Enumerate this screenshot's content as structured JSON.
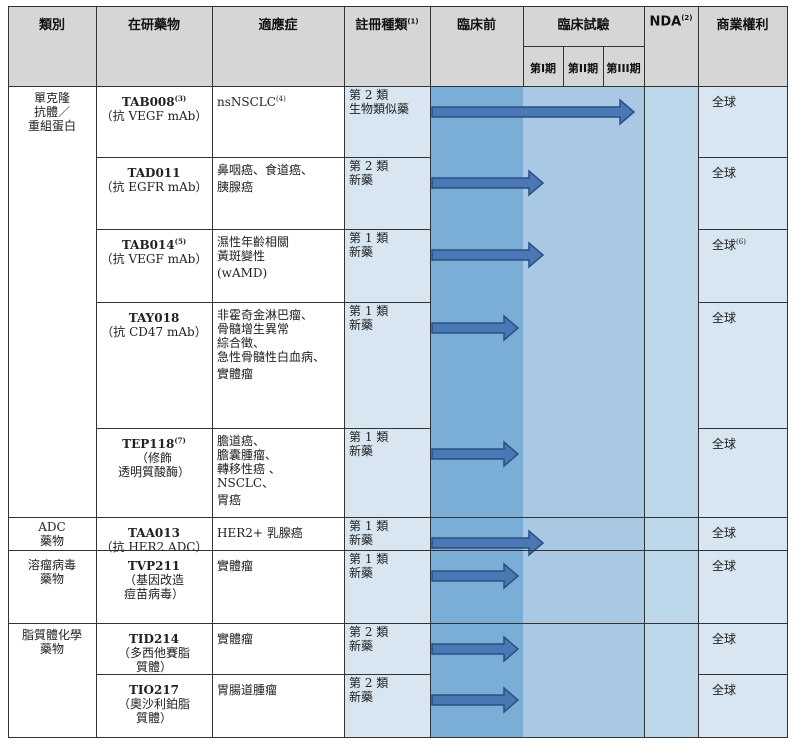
{
  "headers": {
    "category": "類別",
    "drug": "在研藥物",
    "indication": "適應症",
    "registration": "註冊種類",
    "registration_sup": "(1)",
    "preclinical": "臨床前",
    "clinical": "臨床試驗",
    "phase1": "第I期",
    "phase2": "第II期",
    "phase3": "第III期",
    "nda": "NDA",
    "nda_sup": "(2)",
    "rights": "商業權利"
  },
  "categories": [
    {
      "label": "單克隆\n抗體／\n重組蛋白"
    },
    {
      "label": "ADC\n藥物"
    },
    {
      "label": "溶瘤病毒\n藥物"
    },
    {
      "label": "脂質體化學\n藥物"
    }
  ],
  "rows": [
    {
      "drug": "TAB008",
      "drug_sup": "(3)",
      "sub": "（抗 VEGF mAb）",
      "indication": "nsNSCLC",
      "indication_sup": "(4)",
      "registration": "第 2 類\n生物類似藥",
      "rights": "全球",
      "rights_sup": "",
      "progress_stage": "Phase III"
    },
    {
      "drug": "TAD011",
      "drug_sup": "",
      "sub": "（抗 EGFR mAb）",
      "indication": "鼻咽癌、食道癌、\n胰腺癌",
      "indication_sup": "",
      "registration": "第 2 類\n新藥",
      "rights": "全球",
      "rights_sup": "",
      "progress_stage": "Phase I"
    },
    {
      "drug": "TAB014",
      "drug_sup": "(5)",
      "sub": "（抗 VEGF mAb）",
      "indication": "濕性年齡相關\n黃斑變性\n(wAMD)",
      "indication_sup": "",
      "registration": "第 1 類\n新藥",
      "rights": "全球",
      "rights_sup": "(6)",
      "progress_stage": "Phase I"
    },
    {
      "drug": "TAY018",
      "drug_sup": "",
      "sub": "（抗 CD47 mAb）",
      "indication": "非霍奇金淋巴瘤、\n骨髓增生異常\n綜合徵、\n急性骨髓性白血病、\n實體瘤",
      "indication_sup": "",
      "registration": "第 1 類\n新藥",
      "rights": "全球",
      "rights_sup": "",
      "progress_stage": "Preclinical"
    },
    {
      "drug": "TEP118",
      "drug_sup": "(7)",
      "sub": "（修飾\n透明質酸酶）",
      "indication": "膽道癌、\n膽囊腫瘤、\n轉移性癌 、\nNSCLC、\n胃癌",
      "indication_sup": "",
      "registration": "第 1 類\n新藥",
      "rights": "全球",
      "rights_sup": "",
      "progress_stage": "Preclinical"
    },
    {
      "drug": "TAA013",
      "drug_sup": "",
      "sub": "（抗 HER2 ADC）",
      "indication": "HER2+ 乳腺癌",
      "indication_sup": "",
      "registration": "第 1 類\n新藥",
      "rights": "全球",
      "rights_sup": "",
      "progress_stage": "Phase I"
    },
    {
      "drug": "TVP211",
      "drug_sup": "",
      "sub": "（基因改造\n痘苗病毒）",
      "indication": "實體瘤",
      "indication_sup": "",
      "registration": "第 1 類\n新藥",
      "rights": "全球",
      "rights_sup": "",
      "progress_stage": "Preclinical"
    },
    {
      "drug": "TID214",
      "drug_sup": "",
      "sub": "（多西他賽脂\n質體）",
      "indication": "實體瘤",
      "indication_sup": "",
      "registration": "第 2 類\n新藥",
      "rights": "全球",
      "rights_sup": "",
      "progress_stage": "Preclinical"
    },
    {
      "drug": "TIO217",
      "drug_sup": "",
      "sub": "（奧沙利鉑脂\n質體）",
      "indication": "胃腸道腫瘤",
      "indication_sup": "",
      "registration": "第 2 類\n新藥",
      "rights": "全球",
      "rights_sup": "",
      "progress_stage": "Preclinical"
    }
  ],
  "colors": {
    "header_bg": "#d6d6d6",
    "registration_bg": "#d7e6f0",
    "preclinical_bg": "#7aaed6",
    "phase_bg": "#a8c8e3",
    "nda_bg": "#bcd6ea",
    "rights_bg": "#d7e6f0",
    "arrow_fill": "#4a78b4",
    "arrow_stroke": "#2b4f80"
  }
}
